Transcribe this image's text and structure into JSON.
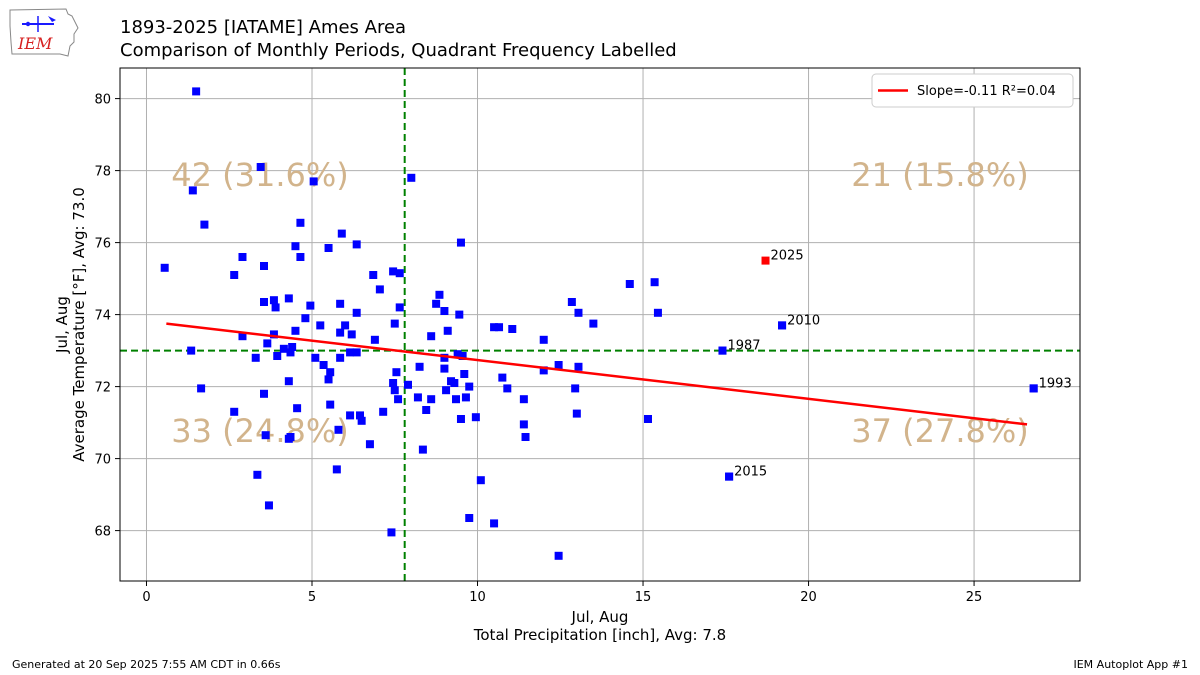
{
  "logo": {
    "text": "IEM"
  },
  "header": {
    "title_line1": "1893-2025 [IATAME] Ames Area",
    "title_line2": "Comparison of Monthly Periods, Quadrant Frequency Labelled"
  },
  "footer": {
    "left": "Generated at 20 Sep 2025 7:55 AM CDT in 0.66s",
    "right": "IEM Autoplot App #1"
  },
  "chart_data": {
    "type": "scatter",
    "xlabel_line1": "Jul, Aug",
    "xlabel_line2": "Total Precipitation [inch], Avg: 7.8",
    "ylabel_line1": "Jul, Aug",
    "ylabel_line2": "Average Temperature [°F], Avg: 73.0",
    "xlim": [
      -0.8,
      28.2
    ],
    "ylim": [
      66.6,
      80.85
    ],
    "xticks": [
      0,
      5,
      10,
      15,
      20,
      25
    ],
    "yticks": [
      68,
      70,
      72,
      74,
      76,
      78,
      80
    ],
    "grid": true,
    "x_avg": 7.8,
    "y_avg": 73.0,
    "colors": {
      "points": "#0000ff",
      "highlight": "#ff0000",
      "trend": "#ff0000",
      "avg_lines": "#008000",
      "quadrant_text": "#d2b48c",
      "grid": "#b0b0b0"
    },
    "legend": {
      "position": "top-right",
      "label": "Slope=-0.11 R²=0.04"
    },
    "trend": {
      "slope": -0.11,
      "r2": 0.04,
      "x": [
        0.6,
        26.6
      ],
      "y": [
        73.75,
        70.95
      ]
    },
    "quadrants": [
      {
        "position": "top-left",
        "label": "42 (31.6%)"
      },
      {
        "position": "top-right",
        "label": "21 (15.8%)"
      },
      {
        "position": "bottom-left",
        "label": "33 (24.8%)"
      },
      {
        "position": "bottom-right",
        "label": "37 (27.8%)"
      }
    ],
    "labelled_points": [
      {
        "label": "2025",
        "x": 18.7,
        "y": 75.5,
        "highlight": true
      },
      {
        "label": "2010",
        "x": 19.2,
        "y": 73.7
      },
      {
        "label": "1987",
        "x": 17.4,
        "y": 73.0
      },
      {
        "label": "1993",
        "x": 26.8,
        "y": 71.95
      },
      {
        "label": "2015",
        "x": 17.6,
        "y": 69.5
      }
    ],
    "points": [
      [
        1.5,
        80.2
      ],
      [
        3.45,
        78.1
      ],
      [
        1.4,
        77.45
      ],
      [
        5.05,
        77.7
      ],
      [
        8.0,
        77.8
      ],
      [
        1.75,
        76.5
      ],
      [
        4.65,
        76.55
      ],
      [
        5.9,
        76.25
      ],
      [
        6.35,
        75.95
      ],
      [
        4.5,
        75.9
      ],
      [
        5.5,
        75.85
      ],
      [
        4.65,
        75.6
      ],
      [
        2.9,
        75.6
      ],
      [
        0.55,
        75.3
      ],
      [
        3.55,
        75.35
      ],
      [
        2.65,
        75.1
      ],
      [
        6.85,
        75.1
      ],
      [
        7.45,
        75.2
      ],
      [
        7.65,
        75.15
      ],
      [
        7.05,
        74.7
      ],
      [
        3.55,
        74.35
      ],
      [
        3.85,
        74.4
      ],
      [
        4.3,
        74.45
      ],
      [
        3.9,
        74.2
      ],
      [
        4.95,
        74.25
      ],
      [
        5.85,
        74.3
      ],
      [
        6.35,
        74.05
      ],
      [
        4.8,
        73.9
      ],
      [
        7.65,
        74.2
      ],
      [
        5.25,
        73.7
      ],
      [
        6.0,
        73.7
      ],
      [
        7.5,
        73.75
      ],
      [
        4.5,
        73.55
      ],
      [
        5.85,
        73.5
      ],
      [
        6.2,
        73.45
      ],
      [
        2.9,
        73.4
      ],
      [
        3.85,
        73.45
      ],
      [
        6.9,
        73.3
      ],
      [
        1.35,
        73.0
      ],
      [
        3.65,
        73.2
      ],
      [
        4.4,
        73.1
      ],
      [
        4.15,
        73.05
      ],
      [
        6.15,
        72.95
      ],
      [
        6.35,
        72.95
      ],
      [
        4.35,
        72.95
      ],
      [
        3.3,
        72.8
      ],
      [
        3.95,
        72.85
      ],
      [
        5.1,
        72.8
      ],
      [
        5.85,
        72.8
      ],
      [
        5.35,
        72.6
      ],
      [
        5.55,
        72.4
      ],
      [
        5.5,
        72.2
      ],
      [
        4.3,
        72.15
      ],
      [
        1.65,
        71.95
      ],
      [
        3.55,
        71.8
      ],
      [
        4.55,
        71.4
      ],
      [
        5.55,
        71.5
      ],
      [
        2.65,
        71.3
      ],
      [
        6.15,
        71.2
      ],
      [
        6.45,
        71.2
      ],
      [
        6.5,
        71.05
      ],
      [
        7.15,
        71.3
      ],
      [
        5.8,
        70.8
      ],
      [
        4.3,
        70.55
      ],
      [
        4.35,
        70.6
      ],
      [
        3.6,
        70.65
      ],
      [
        6.75,
        70.4
      ],
      [
        3.35,
        69.55
      ],
      [
        5.75,
        69.7
      ],
      [
        3.7,
        68.7
      ],
      [
        7.4,
        67.95
      ],
      [
        7.45,
        72.1
      ],
      [
        7.5,
        71.9
      ],
      [
        7.6,
        71.65
      ],
      [
        7.55,
        72.4
      ],
      [
        7.9,
        72.05
      ],
      [
        8.25,
        72.55
      ],
      [
        8.2,
        71.7
      ],
      [
        8.45,
        71.35
      ],
      [
        8.6,
        71.65
      ],
      [
        8.35,
        70.25
      ],
      [
        8.6,
        73.4
      ],
      [
        8.75,
        74.3
      ],
      [
        8.85,
        74.55
      ],
      [
        9.0,
        74.1
      ],
      [
        9.1,
        73.55
      ],
      [
        9.45,
        74.0
      ],
      [
        9.5,
        76.0
      ],
      [
        9.4,
        72.9
      ],
      [
        9.55,
        72.85
      ],
      [
        9.0,
        72.8
      ],
      [
        9.0,
        72.5
      ],
      [
        9.05,
        71.9
      ],
      [
        9.3,
        72.1
      ],
      [
        9.2,
        72.15
      ],
      [
        9.35,
        71.65
      ],
      [
        9.6,
        72.35
      ],
      [
        9.75,
        72.0
      ],
      [
        9.65,
        71.7
      ],
      [
        9.5,
        71.1
      ],
      [
        9.95,
        71.15
      ],
      [
        10.1,
        69.4
      ],
      [
        9.75,
        68.35
      ],
      [
        10.5,
        68.2
      ],
      [
        10.5,
        73.65
      ],
      [
        10.65,
        73.65
      ],
      [
        11.05,
        73.6
      ],
      [
        10.75,
        72.25
      ],
      [
        10.9,
        71.95
      ],
      [
        11.4,
        71.65
      ],
      [
        11.4,
        70.95
      ],
      [
        11.45,
        70.6
      ],
      [
        12.0,
        73.3
      ],
      [
        12.0,
        72.45
      ],
      [
        12.45,
        72.6
      ],
      [
        12.45,
        67.3
      ],
      [
        12.85,
        74.35
      ],
      [
        13.05,
        74.05
      ],
      [
        13.5,
        73.75
      ],
      [
        13.05,
        72.55
      ],
      [
        12.95,
        71.95
      ],
      [
        13.0,
        71.25
      ],
      [
        14.6,
        74.85
      ],
      [
        15.35,
        74.9
      ],
      [
        15.45,
        74.05
      ],
      [
        15.15,
        71.1
      ],
      [
        17.4,
        73.0
      ],
      [
        17.6,
        69.5
      ],
      [
        19.2,
        73.7
      ],
      [
        26.8,
        71.95
      ]
    ]
  }
}
